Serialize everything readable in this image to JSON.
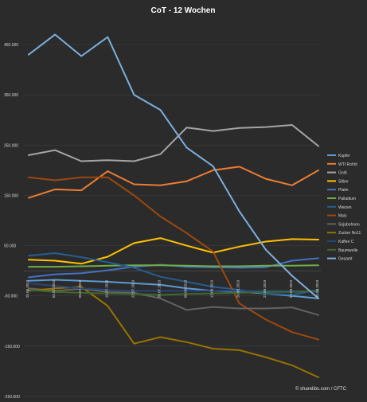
{
  "chart_data": {
    "type": "line",
    "title": "CoT - 12 Wochen",
    "ylim": [
      -250000,
      500000
    ],
    "yticks": [
      450000,
      350000,
      250000,
      150000,
      50000,
      -50000,
      -150000,
      -250000
    ],
    "ytick_labels": [
      "450.000",
      "350.000",
      "250.000",
      "150.000",
      "50.000",
      "-50.000",
      "-150.000",
      "-250.000"
    ],
    "categories": [
      "25.06.2019",
      "02.07.2019",
      "09.07.2019",
      "16.07.2019",
      "23.07.2019",
      "30.07.2019",
      "06.08.2019",
      "13.08.2019",
      "20.08.2019",
      "27.08.2019",
      "03.09.2019",
      "10.09.2019"
    ],
    "grid": true,
    "legend_position": "right",
    "series": [
      {
        "name": "Kupfer",
        "color": "#5b9bd5",
        "values": [
          -20000,
          -18000,
          -20000,
          -22000,
          -25000,
          -28000,
          -35000,
          -40000,
          -42000,
          -45000,
          -50000,
          -55000
        ]
      },
      {
        "name": "WTI Rohöl",
        "color": "#ed7d31",
        "values": [
          145000,
          162000,
          160000,
          198000,
          172000,
          170000,
          178000,
          200000,
          207000,
          183000,
          170000,
          200000
        ]
      },
      {
        "name": "Gold",
        "color": "#a5a5a5",
        "values": [
          230000,
          240000,
          218000,
          220000,
          218000,
          232000,
          285000,
          278000,
          284000,
          286000,
          290000,
          248000
        ]
      },
      {
        "name": "Silber",
        "color": "#ffc000",
        "values": [
          22000,
          20000,
          14000,
          28000,
          55000,
          65000,
          50000,
          36000,
          48000,
          58000,
          63000,
          62000
        ]
      },
      {
        "name": "Platin",
        "color": "#4472c4",
        "values": [
          -13000,
          -7000,
          -5000,
          1000,
          8000,
          12000,
          8000,
          7000,
          6000,
          7000,
          20000,
          25000
        ]
      },
      {
        "name": "Palladium",
        "color": "#70ad47",
        "values": [
          8000,
          8000,
          9000,
          10000,
          11000,
          11000,
          10000,
          9000,
          9000,
          10000,
          10000,
          11000
        ]
      },
      {
        "name": "Weizen",
        "color": "#255e91",
        "values": [
          30000,
          35000,
          27000,
          17000,
          6000,
          -12000,
          -22000,
          -32000,
          -38000,
          -45000,
          -48000,
          -38000
        ]
      },
      {
        "name": "Mais",
        "color": "#9e480e",
        "values": [
          186000,
          180000,
          186000,
          186000,
          150000,
          108000,
          75000,
          38000,
          -65000,
          -97000,
          -122000,
          -137000
        ]
      },
      {
        "name": "Sojabohnen",
        "color": "#636363",
        "values": [
          -35000,
          -40000,
          -36000,
          -42000,
          -44000,
          -55000,
          -78000,
          -72000,
          -75000,
          -75000,
          -73000,
          -88000
        ]
      },
      {
        "name": "Zucker No11",
        "color": "#997300",
        "values": [
          -40000,
          -35000,
          -32000,
          -70000,
          -145000,
          -132000,
          -142000,
          -155000,
          -158000,
          -172000,
          -188000,
          -212000
        ]
      },
      {
        "name": "Kaffee C",
        "color": "#264478",
        "values": [
          -25000,
          -30000,
          -35000,
          -38000,
          -40000,
          -40000,
          -40000,
          -40000,
          -40000,
          -40000,
          -40000,
          -42000
        ]
      },
      {
        "name": "Baumwolle",
        "color": "#43682b",
        "values": [
          -38000,
          -42000,
          -44000,
          -45000,
          -46000,
          -48000,
          -46000,
          -45000,
          -44000,
          -42000,
          -42000,
          -40000
        ]
      },
      {
        "name": "Gesamt",
        "color": "#7cafdd",
        "values": [
          430000,
          470000,
          427000,
          465000,
          350000,
          320000,
          245000,
          208000,
          118000,
          42000,
          -10000,
          -55000
        ]
      }
    ]
  },
  "credit": "© sharelibs.com / CFTC"
}
